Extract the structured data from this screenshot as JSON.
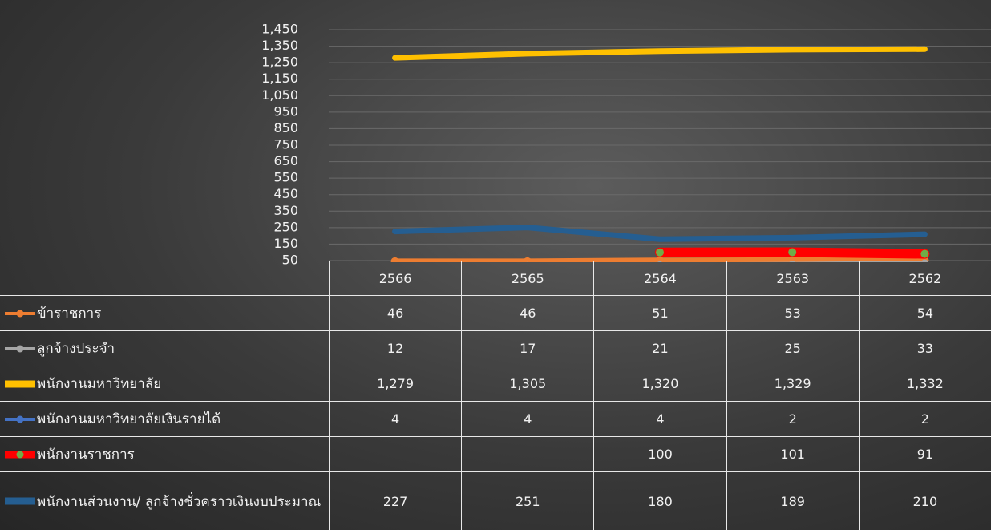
{
  "chart_data": {
    "type": "line",
    "categories": [
      "2566",
      "2565",
      "2564",
      "2563",
      "2562"
    ],
    "ylim": [
      50,
      1450
    ],
    "yticks": [
      50,
      150,
      250,
      350,
      450,
      550,
      650,
      750,
      850,
      950,
      {
        "value": 1050,
        "label": "1,050"
      },
      {
        "value": 1150,
        "label": "1,150"
      },
      {
        "value": 1250,
        "label": "1,250"
      },
      {
        "value": 1350,
        "label": "1,350"
      },
      {
        "value": 1450,
        "label": "1,450"
      }
    ],
    "grid": true,
    "series": [
      {
        "name": "ข้าราชการ",
        "color": "#ed7d31",
        "marker_color": "#ed7d31",
        "values": [
          46,
          46,
          51,
          53,
          54
        ]
      },
      {
        "name": "ลูกจ้างประจำ",
        "color": "#a5a5a5",
        "marker_color": "#a5a5a5",
        "values": [
          12,
          17,
          21,
          25,
          33
        ]
      },
      {
        "name": "พนักงานมหาวิทยาลัย",
        "color": "#ffc000",
        "values": [
          1279,
          1305,
          1320,
          1329,
          1332
        ],
        "value_labels": [
          "1,279",
          "1,305",
          "1,320",
          "1,329",
          "1,332"
        ]
      },
      {
        "name": "พนักงานมหาวิทยาลัยเงินรายได้",
        "color": "#4472c4",
        "marker_color": "#4472c4",
        "values": [
          4,
          4,
          4,
          2,
          2
        ]
      },
      {
        "name": "พนักงานราชการ",
        "color": "#ff0000",
        "marker_color": "#70ad47",
        "values": [
          null,
          null,
          100,
          101,
          91
        ]
      },
      {
        "name": "พนักงานส่วนงาน/ ลูกจ้างชั่วคราวเงินงบประมาณ",
        "color": "#255e91",
        "values": [
          227,
          251,
          180,
          189,
          210
        ]
      }
    ]
  }
}
